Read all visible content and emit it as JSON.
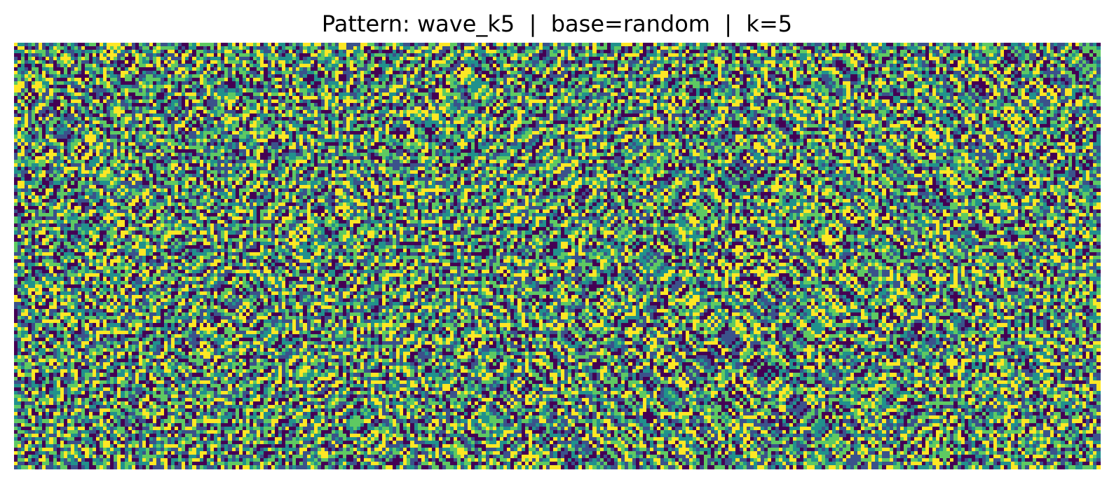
{
  "chart_data": {
    "type": "heatmap",
    "title": "Pattern: wave_k5  |  base=random  |  k=5",
    "xlabel": "",
    "ylabel": "",
    "axes_visible": false,
    "grid": false,
    "legend": "none",
    "colormap": "viridis",
    "num_levels": 5,
    "levels": [
      0,
      1,
      2,
      3,
      4
    ],
    "level_colors": [
      "#440154",
      "#3b528b",
      "#21918c",
      "#5ec962",
      "#fde725"
    ],
    "grid_shape": {
      "rows": 120,
      "cols": 304
    }
  }
}
